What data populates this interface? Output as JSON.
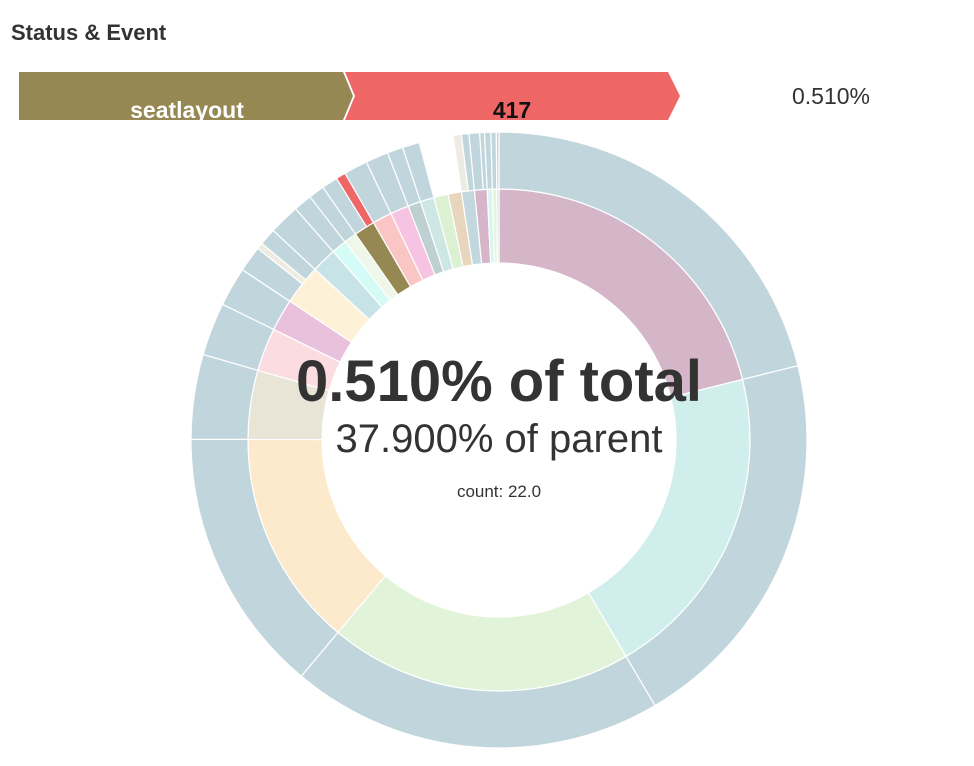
{
  "header": {
    "title": "Status & Event"
  },
  "breadcrumb": {
    "items": [
      {
        "label": "seatlayout",
        "color": "#958853",
        "text_color": "#ffffff"
      },
      {
        "label": "417",
        "color": "#ef6667",
        "text_color": "#111111"
      }
    ],
    "percentage": "0.510%"
  },
  "chart_data": {
    "type": "sunburst",
    "title": "Status & Event",
    "center": {
      "total_label": "0.510% of total",
      "parent_label": "37.900% of parent",
      "count_label": "count: 22.0"
    },
    "units": "percent of total",
    "rings": [
      {
        "color": "#d5b5c8",
        "value": 21.11,
        "children": [
          {
            "value": 21.11,
            "color": "#c1d6dc"
          }
        ]
      },
      {
        "color": "#d0eeec",
        "value": 20.42,
        "children": [
          {
            "value": 20.42,
            "color": "#c1d6dc"
          }
        ]
      },
      {
        "color": "#e1f4da",
        "value": 19.53,
        "children": [
          {
            "value": 19.53,
            "color": "#c1d6dc"
          }
        ]
      },
      {
        "color": "#fde9cb",
        "value": 13.94,
        "children": [
          {
            "value": 13.94,
            "color": "#c1d6dc"
          }
        ]
      },
      {
        "color": "#e8e4d6",
        "value": 4.44,
        "children": [
          {
            "value": 4.44,
            "color": "#c1d6dc"
          }
        ]
      },
      {
        "color": "#fbdce0",
        "value": 2.78,
        "children": [
          {
            "value": 2.78,
            "color": "#c1d6dc"
          }
        ]
      },
      {
        "color": "#eac1dc",
        "value": 2.06,
        "children": [
          {
            "value": 2.06,
            "color": "#c1d6dc"
          }
        ]
      },
      {
        "color": "#fdf1d7",
        "value": 2.58,
        "children": [
          {
            "value": 1.36,
            "color": "#c1d6dc"
          },
          {
            "value": 0.33,
            "color": "#eeebe2"
          },
          {
            "value": 0.89,
            "color": "#c1d6dc"
          }
        ]
      },
      {
        "color": "#c8e3e7",
        "value": 1.61,
        "children": [
          {
            "value": 1.61,
            "color": "#c1d6dc"
          }
        ]
      },
      {
        "color": "#d5fbf6",
        "value": 0.97,
        "children": [
          {
            "value": 0.97,
            "color": "#c1d6dc"
          }
        ]
      },
      {
        "color": "#eef7e9",
        "value": 0.83,
        "children": [
          {
            "value": 0.83,
            "color": "#c1d6dc"
          }
        ]
      },
      {
        "color": "#958853",
        "value": 1.35,
        "highlight": true,
        "children": [
          {
            "value": 0.84,
            "color": "#c1d6dc"
          },
          {
            "value": 0.51,
            "color": "#ef6667",
            "highlight": true
          }
        ]
      },
      {
        "color": "#f9c5c5",
        "value": 1.25,
        "children": [
          {
            "value": 1.25,
            "color": "#c1d6dc"
          }
        ]
      },
      {
        "color": "#f7c3e3",
        "value": 1.19,
        "children": [
          {
            "value": 1.19,
            "color": "#c1d6dc"
          }
        ]
      },
      {
        "color": "#bfd0d3",
        "value": 0.83,
        "children": [
          {
            "value": 0.83,
            "color": "#c1d6dc"
          }
        ]
      },
      {
        "color": "#cde8e4",
        "value": 0.89,
        "children": [
          {
            "value": 0.89,
            "color": "#c1d6dc"
          }
        ]
      },
      {
        "color": "#dcf1d1",
        "value": 0.92,
        "children": []
      },
      {
        "color": "#e7d6bd",
        "value": 0.86,
        "children": []
      },
      {
        "color": "#c3d8de",
        "value": 0.83,
        "children": [
          {
            "value": 0.44,
            "color": "#eeebe2"
          },
          {
            "value": 0.39,
            "color": "#c1d6dc"
          }
        ]
      },
      {
        "color": "#d6b5c8",
        "value": 0.81,
        "children": [
          {
            "value": 0.56,
            "color": "#c1d6dc"
          },
          {
            "value": 0.25,
            "color": "#c1d6dc"
          }
        ]
      },
      {
        "color": "#d5f6f2",
        "value": 0.33,
        "children": [
          {
            "value": 0.33,
            "color": "#c1d6dc"
          }
        ]
      },
      {
        "color": "#e5f6d9",
        "value": 0.28,
        "children": [
          {
            "value": 0.28,
            "color": "#c1d6dc"
          }
        ]
      },
      {
        "color": "#c8dce0",
        "value": 0.14,
        "children": [
          {
            "value": 0.14,
            "color": "#c1d6dc"
          }
        ]
      }
    ]
  }
}
